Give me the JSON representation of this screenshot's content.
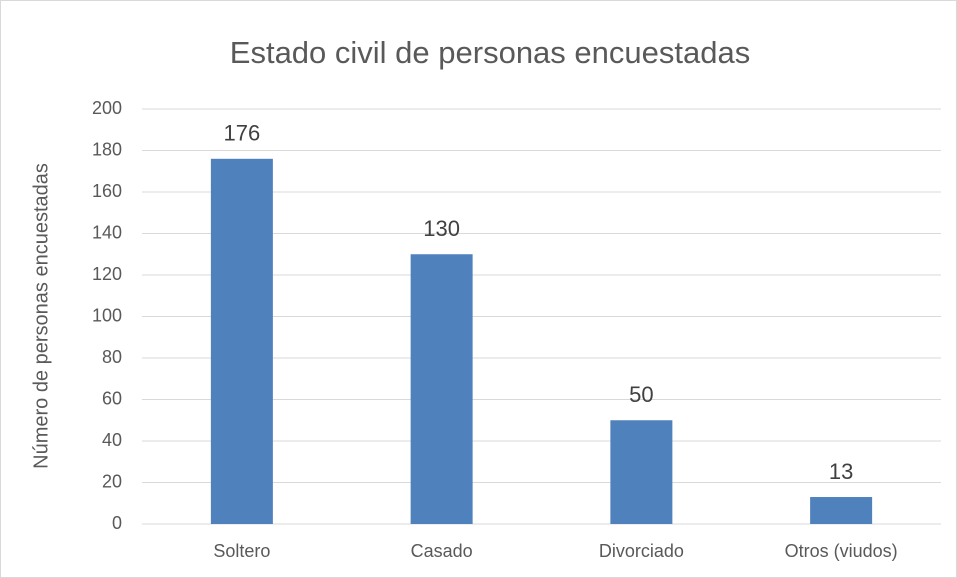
{
  "chart_data": {
    "type": "bar",
    "title": "Estado civil de personas encuestadas",
    "y_label": "Número de personas encuestadas",
    "categories": [
      "Soltero",
      "Casado",
      "Divorciado",
      "Otros (viudos)"
    ],
    "values": [
      176,
      130,
      50,
      13
    ],
    "color": "#4f81bd",
    "ylim": [
      0,
      200
    ],
    "yticks": [
      0,
      20,
      40,
      60,
      80,
      100,
      120,
      140,
      160,
      180,
      200
    ],
    "grid": true
  }
}
